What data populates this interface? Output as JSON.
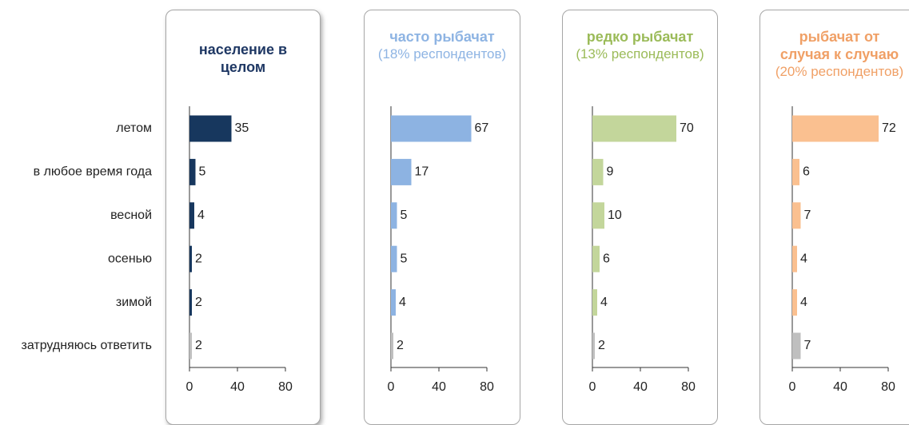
{
  "chart_data": [
    {
      "type": "bar",
      "orientation": "horizontal",
      "title": "население в целом",
      "categories": [
        "летом",
        "в любое время года",
        "весной",
        "осенью",
        "зимой",
        "затрудняюсь ответить"
      ],
      "values": [
        35,
        5,
        4,
        2,
        2,
        2
      ],
      "colors": [
        "#17375e",
        "#17375e",
        "#17375e",
        "#17375e",
        "#17375e",
        "#bfbfbf"
      ],
      "title_color": "#1f3864",
      "xlim": [
        0,
        80
      ],
      "xticks": [
        0,
        40,
        80
      ]
    },
    {
      "type": "bar",
      "orientation": "horizontal",
      "title": "часто рыбачат",
      "subtitle": "(18% респондентов)",
      "values": [
        67,
        17,
        5,
        5,
        4,
        2
      ],
      "colors": [
        "#8db3e2",
        "#8db3e2",
        "#8db3e2",
        "#8db3e2",
        "#8db3e2",
        "#bfbfbf"
      ],
      "title_color": "#8eb4e3",
      "xlim": [
        0,
        80
      ],
      "xticks": [
        0,
        40,
        80
      ]
    },
    {
      "type": "bar",
      "orientation": "horizontal",
      "title": "редко рыбачат",
      "subtitle": "(13% респондентов)",
      "values": [
        70,
        9,
        10,
        6,
        4,
        2
      ],
      "colors": [
        "#c3d69b",
        "#c3d69b",
        "#c3d69b",
        "#c3d69b",
        "#c3d69b",
        "#bfbfbf"
      ],
      "title_color": "#9bbb59",
      "xlim": [
        0,
        80
      ],
      "xticks": [
        0,
        40,
        80
      ]
    },
    {
      "type": "bar",
      "orientation": "horizontal",
      "title": "рыбачат от случая к случаю",
      "subtitle": "(20% респондентов)",
      "values": [
        72,
        6,
        7,
        4,
        4,
        7
      ],
      "colors": [
        "#fac090",
        "#fac090",
        "#fac090",
        "#fac090",
        "#fac090",
        "#bfbfbf"
      ],
      "title_color": "#f0a066",
      "xlim": [
        0,
        80
      ],
      "xticks": [
        0,
        40,
        80
      ]
    }
  ]
}
